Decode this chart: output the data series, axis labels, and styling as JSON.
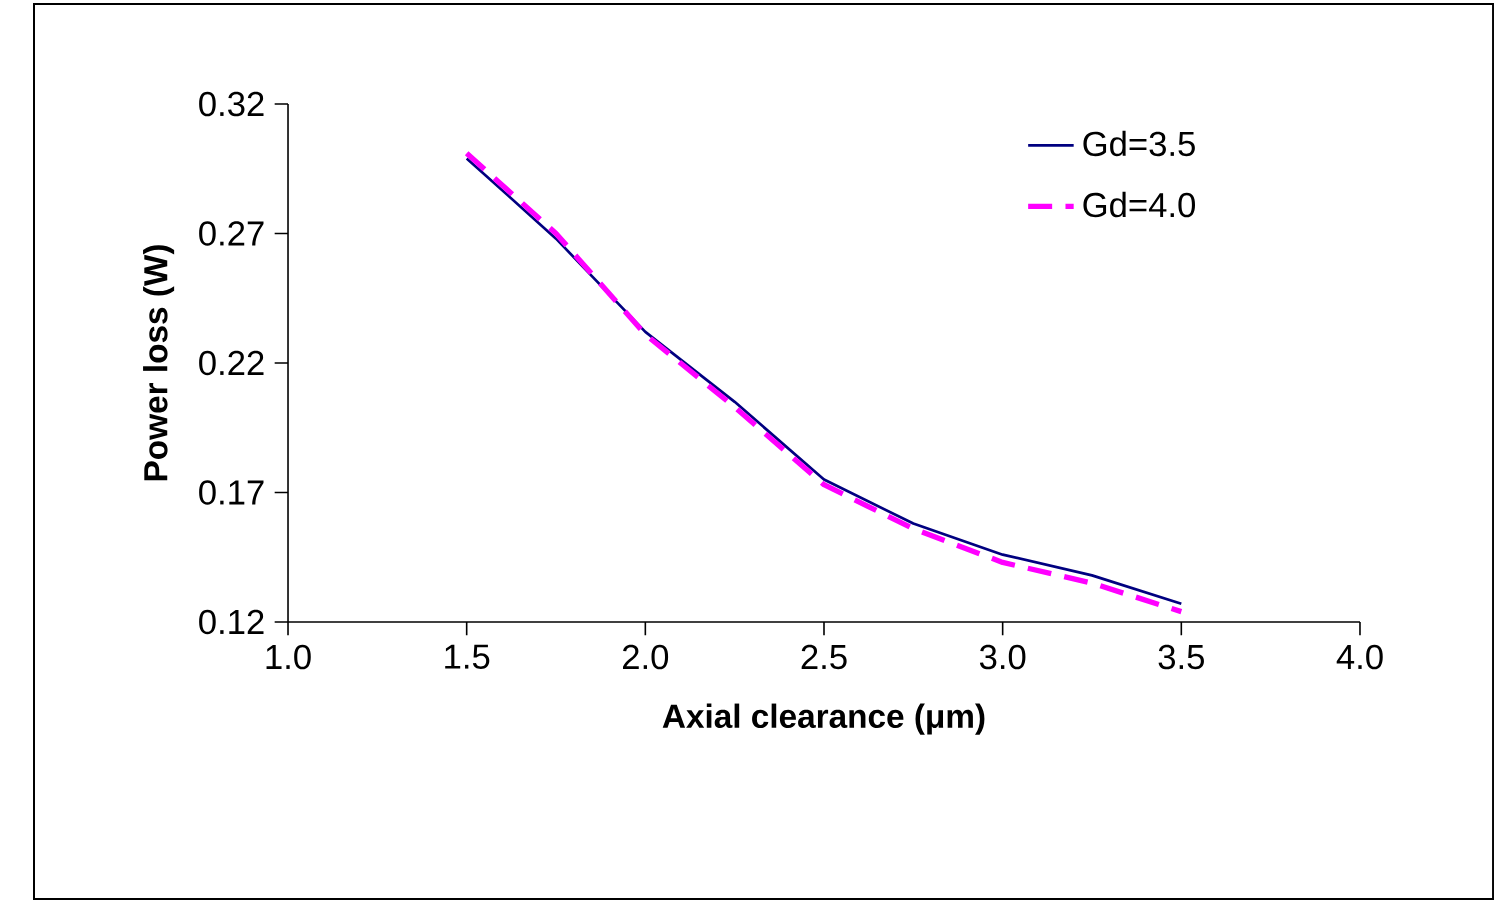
{
  "chart_data": {
    "type": "line",
    "xlabel": "Axial clearance (μm)",
    "ylabel": "Power loss (W)",
    "x": [
      1.5,
      1.75,
      2.0,
      2.25,
      2.5,
      2.75,
      3.0,
      3.25,
      3.5
    ],
    "series": [
      {
        "name": "Gd=3.5",
        "color": "#000080",
        "line_style": "solid",
        "values": [
          0.299,
          0.268,
          0.232,
          0.205,
          0.175,
          0.158,
          0.146,
          0.138,
          0.127
        ]
      },
      {
        "name": "Gd=4.0",
        "color": "#ff00ff",
        "line_style": "dashed",
        "values": [
          0.301,
          0.27,
          0.231,
          0.203,
          0.173,
          0.156,
          0.143,
          0.135,
          0.124
        ]
      }
    ],
    "xlim": [
      1.0,
      4.0
    ],
    "xticks": [
      {
        "value": 1,
        "label": "1.0"
      },
      1.5,
      {
        "value": 2,
        "label": "2.0"
      },
      2.5,
      {
        "value": 3,
        "label": "3.0"
      },
      3.5,
      {
        "value": 4,
        "label": "4.0"
      }
    ],
    "ylim": [
      0.12,
      0.32
    ],
    "yticks": [
      0.12,
      0.17,
      0.22,
      0.27,
      0.32
    ],
    "grid": false,
    "legend": "top right",
    "marker": "none"
  }
}
